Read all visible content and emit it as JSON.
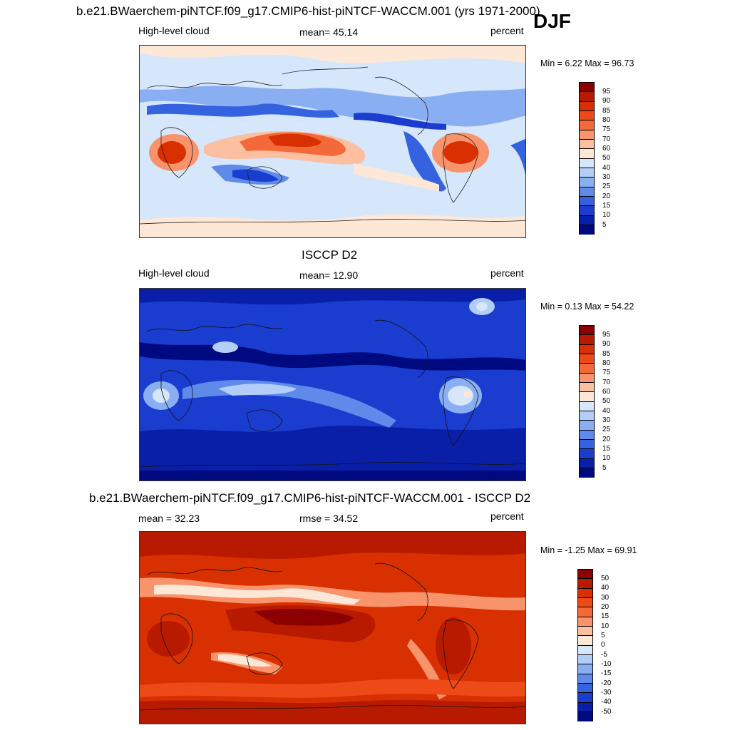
{
  "header": {
    "title": "b.e21.BWaerchem-piNTCF.f09_g17.CMIP6-hist-piNTCF-WACCM.001 (yrs 1971-2000)",
    "season": "DJF"
  },
  "panels": [
    {
      "id": "model",
      "left_label": "High-level cloud",
      "center_label": "mean=  45.14",
      "right_label": "percent",
      "minmax": "Min =   6.22 Max =  96.73",
      "colorbar_ticks": [
        "95",
        "90",
        "85",
        "80",
        "75",
        "70",
        "60",
        "50",
        "40",
        "30",
        "25",
        "20",
        "15",
        "10",
        "5"
      ]
    },
    {
      "id": "obs",
      "title": "ISCCP D2",
      "left_label": "High-level cloud",
      "center_label": "mean=  12.90",
      "right_label": "percent",
      "minmax": "Min =   0.13 Max =  54.22",
      "colorbar_ticks": [
        "95",
        "90",
        "85",
        "80",
        "75",
        "70",
        "60",
        "50",
        "40",
        "30",
        "25",
        "20",
        "15",
        "10",
        "5"
      ]
    },
    {
      "id": "diff",
      "title": "b.e21.BWaerchem-piNTCF.f09_g17.CMIP6-hist-piNTCF-WACCM.001 - ISCCP D2",
      "left_label": "mean =  32.23",
      "center_label": "rmse =  34.52",
      "right_label": "percent",
      "minmax": "Min =  -1.25 Max =  69.91",
      "colorbar_ticks": [
        "50",
        "40",
        "30",
        "20",
        "15",
        "10",
        "5",
        "0",
        "-5",
        "-10",
        "-15",
        "-20",
        "-30",
        "-40",
        "-50"
      ]
    }
  ],
  "chart_data": [
    {
      "type": "heatmap",
      "title": "b.e21.BWaerchem-piNTCF.f09_g17.CMIP6-hist-piNTCF-WACCM.001 (yrs 1971-2000)",
      "variable": "High-level cloud",
      "units": "percent",
      "mean": 45.14,
      "min": 6.22,
      "max": 96.73,
      "levels": [
        5,
        10,
        15,
        20,
        25,
        30,
        40,
        50,
        60,
        70,
        75,
        80,
        85,
        90,
        95
      ]
    },
    {
      "type": "heatmap",
      "title": "ISCCP D2",
      "variable": "High-level cloud",
      "units": "percent",
      "mean": 12.9,
      "min": 0.13,
      "max": 54.22,
      "levels": [
        5,
        10,
        15,
        20,
        25,
        30,
        40,
        50,
        60,
        70,
        75,
        80,
        85,
        90,
        95
      ]
    },
    {
      "type": "heatmap",
      "title": "b.e21.BWaerchem-piNTCF.f09_g17.CMIP6-hist-piNTCF-WACCM.001 - ISCCP D2",
      "units": "percent",
      "mean": 32.23,
      "rmse": 34.52,
      "min": -1.25,
      "max": 69.91,
      "levels": [
        -50,
        -40,
        -30,
        -20,
        -15,
        -10,
        -5,
        0,
        5,
        10,
        15,
        20,
        30,
        40,
        50
      ]
    }
  ],
  "colors": {
    "colorbar": [
      "#8b0000",
      "#b81a00",
      "#d83000",
      "#ee4a18",
      "#f4693a",
      "#f9936b",
      "#fcbfa0",
      "#fde8d8",
      "#d6e6fb",
      "#b2cdf7",
      "#8aaef2",
      "#5f8aea",
      "#3563e0",
      "#1a3dd0",
      "#0a1fa8",
      "#000a80"
    ]
  }
}
